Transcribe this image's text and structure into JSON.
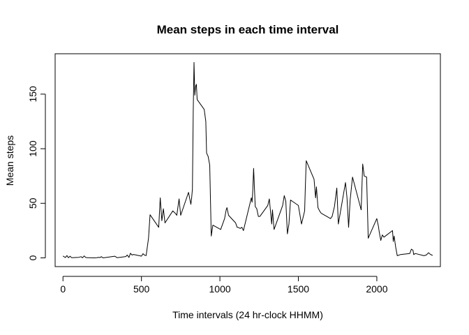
{
  "chart_data": {
    "type": "line",
    "title": "Mean steps in each time interval",
    "xlabel": "Time intervals (24 hr-clock HHMM)",
    "ylabel": "Mean steps",
    "xlim": [
      -50,
      2405
    ],
    "ylim": [
      -8,
      187
    ],
    "xticks": [
      0,
      500,
      1000,
      1500,
      2000
    ],
    "yticks": [
      0,
      50,
      100,
      150
    ],
    "xtick_labels": [
      "0",
      "500",
      "1000",
      "1500",
      "2000"
    ],
    "ytick_labels": [
      "0",
      "50",
      "100",
      "150"
    ],
    "grid": false,
    "series": [
      {
        "x": [
          0,
          15,
          25,
          35,
          45,
          55,
          100,
          115,
          125,
          135,
          145,
          155,
          200,
          215,
          225,
          235,
          245,
          255,
          330,
          345,
          400,
          410,
          420,
          430,
          440,
          450,
          500,
          510,
          520,
          530,
          545,
          555,
          610,
          620,
          630,
          640,
          650,
          700,
          715,
          725,
          740,
          750,
          800,
          815,
          820,
          825,
          830,
          835,
          840,
          845,
          850,
          855,
          900,
          910,
          915,
          925,
          935,
          945,
          955,
          1005,
          1030,
          1040,
          1045,
          1055,
          1100,
          1110,
          1115,
          1130,
          1140,
          1150,
          1200,
          1205,
          1210,
          1215,
          1225,
          1235,
          1245,
          1255,
          1305,
          1315,
          1330,
          1335,
          1345,
          1400,
          1410,
          1420,
          1430,
          1440,
          1450,
          1500,
          1520,
          1540,
          1545,
          1550,
          1600,
          1610,
          1615,
          1625,
          1635,
          1645,
          1705,
          1715,
          1730,
          1745,
          1755,
          1800,
          1810,
          1820,
          1830,
          1845,
          1900,
          1910,
          1920,
          1935,
          1945,
          2000,
          2010,
          2015,
          2025,
          2035,
          2045,
          2100,
          2105,
          2110,
          2120,
          2130,
          2150,
          2210,
          2220,
          2230,
          2235,
          2245,
          2300,
          2315,
          2330,
          2340,
          2355
        ],
        "y": [
          1.7,
          0.3,
          2.1,
          0.1,
          1.5,
          0.2,
          0.5,
          1.1,
          0.1,
          1.8,
          0.4,
          0.2,
          0.0,
          0.2,
          0.5,
          0.3,
          1.1,
          0.0,
          1.5,
          0.2,
          1.2,
          2.6,
          0.4,
          4.2,
          2.6,
          3.1,
          1.6,
          3.8,
          2.5,
          2.1,
          18.0,
          39.5,
          28.0,
          55.0,
          34.0,
          45.0,
          32.0,
          43.0,
          41.0,
          39.0,
          54.0,
          39.0,
          60.0,
          49.0,
          55.0,
          63.0,
          135.0,
          179.1,
          149.0,
          157.0,
          159.0,
          145.0,
          136.0,
          125.0,
          96.0,
          93.0,
          85.0,
          20.0,
          30.0,
          26.0,
          36.0,
          44.0,
          46.0,
          39.0,
          32.0,
          28.0,
          28.0,
          27.0,
          28.0,
          25.0,
          55.0,
          51.0,
          63.0,
          82.0,
          47.0,
          45.0,
          38.0,
          38.0,
          48.0,
          54.0,
          31.0,
          44.0,
          26.0,
          48.0,
          57.0,
          52.0,
          22.0,
          31.0,
          53.0,
          48.0,
          31.0,
          43.0,
          67.0,
          89.0,
          72.0,
          55.0,
          65.0,
          46.0,
          43.0,
          41.0,
          36.0,
          38.0,
          47.0,
          64.0,
          31.0,
          69.0,
          55.0,
          28.0,
          53.0,
          74.0,
          44.0,
          86.0,
          75.0,
          74.0,
          18.0,
          36.0,
          29.0,
          24.0,
          16.0,
          21.0,
          19.0,
          25.0,
          15.0,
          20.0,
          10.0,
          2.0,
          3.0,
          4.0,
          8.0,
          7.0,
          3.0,
          4.0,
          2.0,
          2.6,
          4.7,
          3.3,
          2.2
        ]
      }
    ]
  }
}
